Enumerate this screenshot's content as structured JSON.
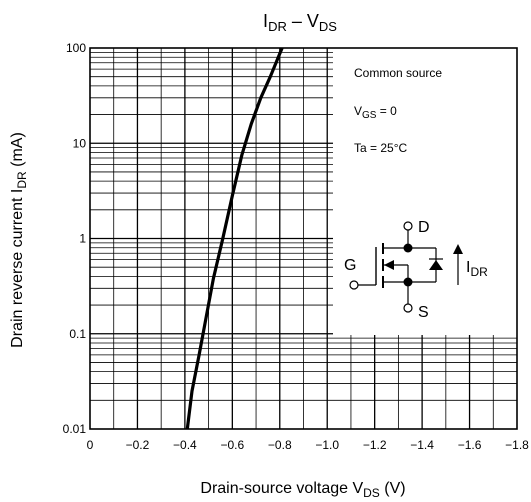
{
  "chart_data": {
    "type": "line",
    "title_main": "I",
    "title_sub1": "DR",
    "title_dash": " – V",
    "title_sub2": "DS",
    "x_axis": {
      "label_main": "Drain-source voltage   V",
      "label_sub": "DS",
      "label_unit": "   (V)",
      "range": [
        0,
        -1.8
      ],
      "ticks": [
        0,
        -0.2,
        -0.4,
        -0.6,
        -0.8,
        -1.0,
        -1.2,
        -1.4,
        -1.6,
        -1.8
      ],
      "tick_labels": [
        "0",
        "−0.2",
        "−0.4",
        "−0.6",
        "−0.8",
        "−1.0",
        "−1.2",
        "−1.4",
        "−1.6",
        "−1.8"
      ]
    },
    "y_axis": {
      "label_main": "Drain reverse current   I",
      "label_sub": "DR",
      "label_unit": "   (mA)",
      "scale": "log",
      "range": [
        0.01,
        100
      ],
      "ticks": [
        0.01,
        0.1,
        1,
        10,
        100
      ],
      "tick_labels": [
        "0.01",
        "0.1",
        "1",
        "10",
        "100"
      ]
    },
    "grid": true,
    "series": [
      {
        "x": [
          -0.41,
          -0.43,
          -0.46,
          -0.49,
          -0.52,
          -0.56,
          -0.6,
          -0.64,
          -0.68,
          -0.72,
          -0.76,
          -0.81
        ],
        "y": [
          0.01,
          0.025,
          0.06,
          0.15,
          0.38,
          1.0,
          2.8,
          7.5,
          16,
          30,
          50,
          100
        ]
      }
    ],
    "annotations": {
      "common_source": "Common source",
      "vgs_main": "V",
      "vgs_sub": "GS",
      "vgs_val": " = 0",
      "ta": "Ta = 25°C",
      "pin_d": "D",
      "pin_g": "G",
      "pin_s": "S",
      "idr_main": "I",
      "idr_sub": "DR"
    },
    "colors": {
      "line": "#000000",
      "grid": "#000000",
      "background": "#ffffff"
    }
  }
}
